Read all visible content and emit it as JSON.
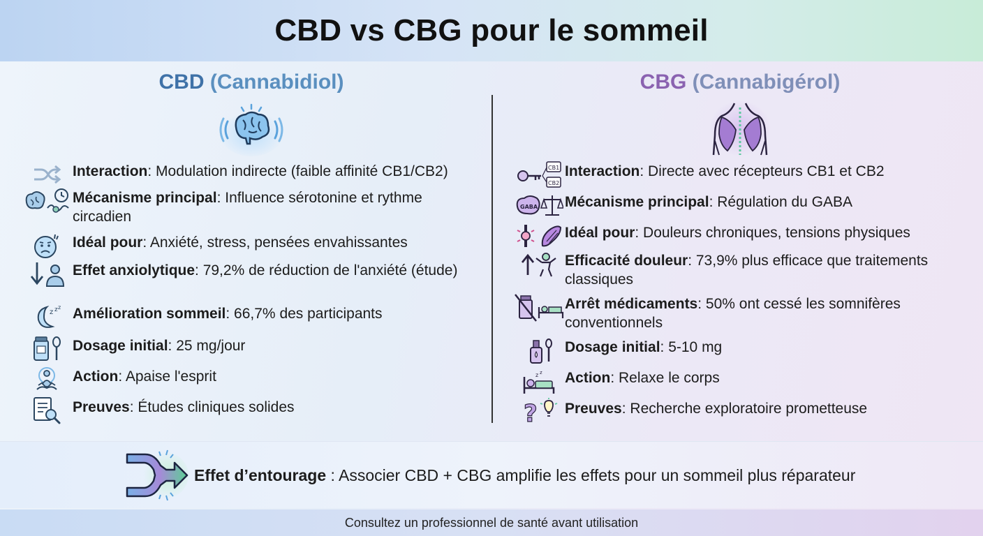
{
  "title": "CBD vs CBG pour le sommeil",
  "colors": {
    "cbd": "#3f72a8",
    "cbg": "#8a62b0",
    "accent_green": "#4caf7d"
  },
  "cbd": {
    "name": "CBD",
    "full": "(Cannabidiol)",
    "hero_icon": "brain-icon",
    "items": [
      {
        "icon": "shuffle-icon",
        "label": "Interaction",
        "text": ": Modulation indirecte (faible affinité CB1/CB2)"
      },
      {
        "icon": "brain-rhythm-icon",
        "label": "Mécanisme principal",
        "text": ": Influence sérotonine et rythme circadien"
      },
      {
        "icon": "worried-face-icon",
        "label": "Idéal pour",
        "text": ": Anxiété, stress, pensées envahissantes"
      },
      {
        "icon": "down-arrow-person-icon",
        "label": "Effet anxiolytique",
        "text": ": 79,2% de réduction de l'anxiété (étude)"
      },
      {
        "icon": "moon-zzz-icon",
        "label": "Amélioration sommeil",
        "text": ": 66,7% des participants"
      },
      {
        "icon": "pill-bottle-spoon-icon",
        "label": "Dosage initial",
        "text": ": 25 mg/jour"
      },
      {
        "icon": "meditation-icon",
        "label": "Action",
        "text": ": Apaise l'esprit"
      },
      {
        "icon": "document-search-icon",
        "label": "Preuves",
        "text": ": Études cliniques solides"
      }
    ]
  },
  "cbg": {
    "name": "CBG",
    "full": "(Cannabigérol)",
    "hero_icon": "muscle-torso-icon",
    "items": [
      {
        "icon": "key-receptor-icon",
        "label": "Interaction",
        "text": ": Directe avec récepteurs CB1 et CB2"
      },
      {
        "icon": "brain-balance-icon",
        "label": "Mécanisme principal",
        "text": ": Régulation du GABA"
      },
      {
        "icon": "joint-muscle-icon",
        "label": "Idéal pour",
        "text": ": Douleurs chroniques, tensions physiques"
      },
      {
        "icon": "up-arrow-strong-icon",
        "label": "Efficacité douleur",
        "text": ": 73,9% plus efficace que traitements classiques"
      },
      {
        "icon": "no-pills-bed-icon",
        "label": "Arrêt médicaments",
        "text": ": 50% ont cessé les somnifères conventionnels"
      },
      {
        "icon": "dropper-spoon-icon",
        "label": "Dosage initial",
        "text": ": 5-10 mg"
      },
      {
        "icon": "sleeping-bed-icon",
        "label": "Action",
        "text": ": Relaxe le corps"
      },
      {
        "icon": "question-bulb-icon",
        "label": "Preuves",
        "text": ": Recherche exploratoire prometteuse"
      }
    ]
  },
  "icon_labels": {
    "cb1": "CB1",
    "cb2": "CB2",
    "brain_text": "GABA"
  },
  "entourage": {
    "label": "Effet d’entourage",
    "text": " : Associer CBD + CBG amplifie les effets pour un sommeil plus réparateur"
  },
  "footer": "Consultez un professionnel de santé avant utilisation"
}
